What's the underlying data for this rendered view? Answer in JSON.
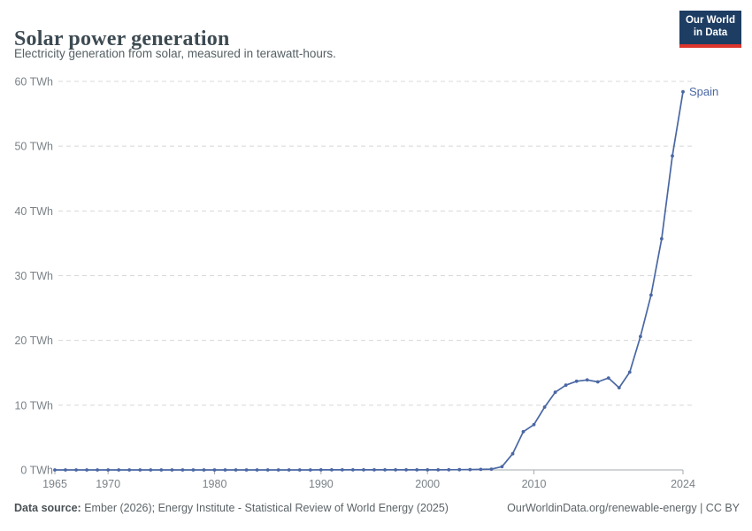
{
  "header": {
    "title": "Solar power generation",
    "subtitle": "Electricity generation from solar, measured in terawatt-hours.",
    "logo": {
      "line1": "Our World",
      "line2": "in Data"
    }
  },
  "colors": {
    "series_line": "#4a67a3",
    "logo_background": "#1d3d63",
    "logo_accent_red": "#dc352c",
    "gridline": "#d8d8d8",
    "axis_text": "#7a8288"
  },
  "chart_data": {
    "type": "line",
    "title": "Solar power generation",
    "xlabel": "",
    "ylabel": "",
    "y_unit_suffix": " TWh",
    "xlim": [
      1965,
      2024
    ],
    "ylim": [
      0,
      60
    ],
    "grid": "horizontal-dashed",
    "legend_position": "end-of-line-label",
    "x_ticks": [
      1965,
      1970,
      1980,
      1990,
      2000,
      2010,
      2024
    ],
    "y_ticks": [
      0,
      10,
      20,
      30,
      40,
      50,
      60
    ],
    "series": [
      {
        "name": "Spain",
        "color": "#4a67a3",
        "x": [
          1965,
          1966,
          1967,
          1968,
          1969,
          1970,
          1971,
          1972,
          1973,
          1974,
          1975,
          1976,
          1977,
          1978,
          1979,
          1980,
          1981,
          1982,
          1983,
          1984,
          1985,
          1986,
          1987,
          1988,
          1989,
          1990,
          1991,
          1992,
          1993,
          1994,
          1995,
          1996,
          1997,
          1998,
          1999,
          2000,
          2001,
          2002,
          2003,
          2004,
          2005,
          2006,
          2007,
          2008,
          2009,
          2010,
          2011,
          2012,
          2013,
          2014,
          2015,
          2016,
          2017,
          2018,
          2019,
          2020,
          2021,
          2022,
          2023,
          2024
        ],
        "values": [
          0,
          0,
          0,
          0,
          0,
          0,
          0,
          0,
          0,
          0,
          0,
          0,
          0,
          0,
          0,
          0,
          0,
          0,
          0,
          0,
          0,
          0,
          0,
          0,
          0,
          0.01,
          0.01,
          0.01,
          0.01,
          0.01,
          0.01,
          0.01,
          0.01,
          0.01,
          0.01,
          0.02,
          0.02,
          0.03,
          0.04,
          0.06,
          0.08,
          0.12,
          0.5,
          2.5,
          5.9,
          7.0,
          9.7,
          12.0,
          13.1,
          13.7,
          13.9,
          13.6,
          14.2,
          12.7,
          15.1,
          20.6,
          27.0,
          35.7,
          48.5,
          58.4
        ]
      }
    ]
  },
  "footer": {
    "source_label": "Data source:",
    "source_text": " Ember (2026); Energy Institute - Statistical Review of World Energy (2025)",
    "link": "OurWorldinData.org/renewable-energy | CC BY"
  }
}
